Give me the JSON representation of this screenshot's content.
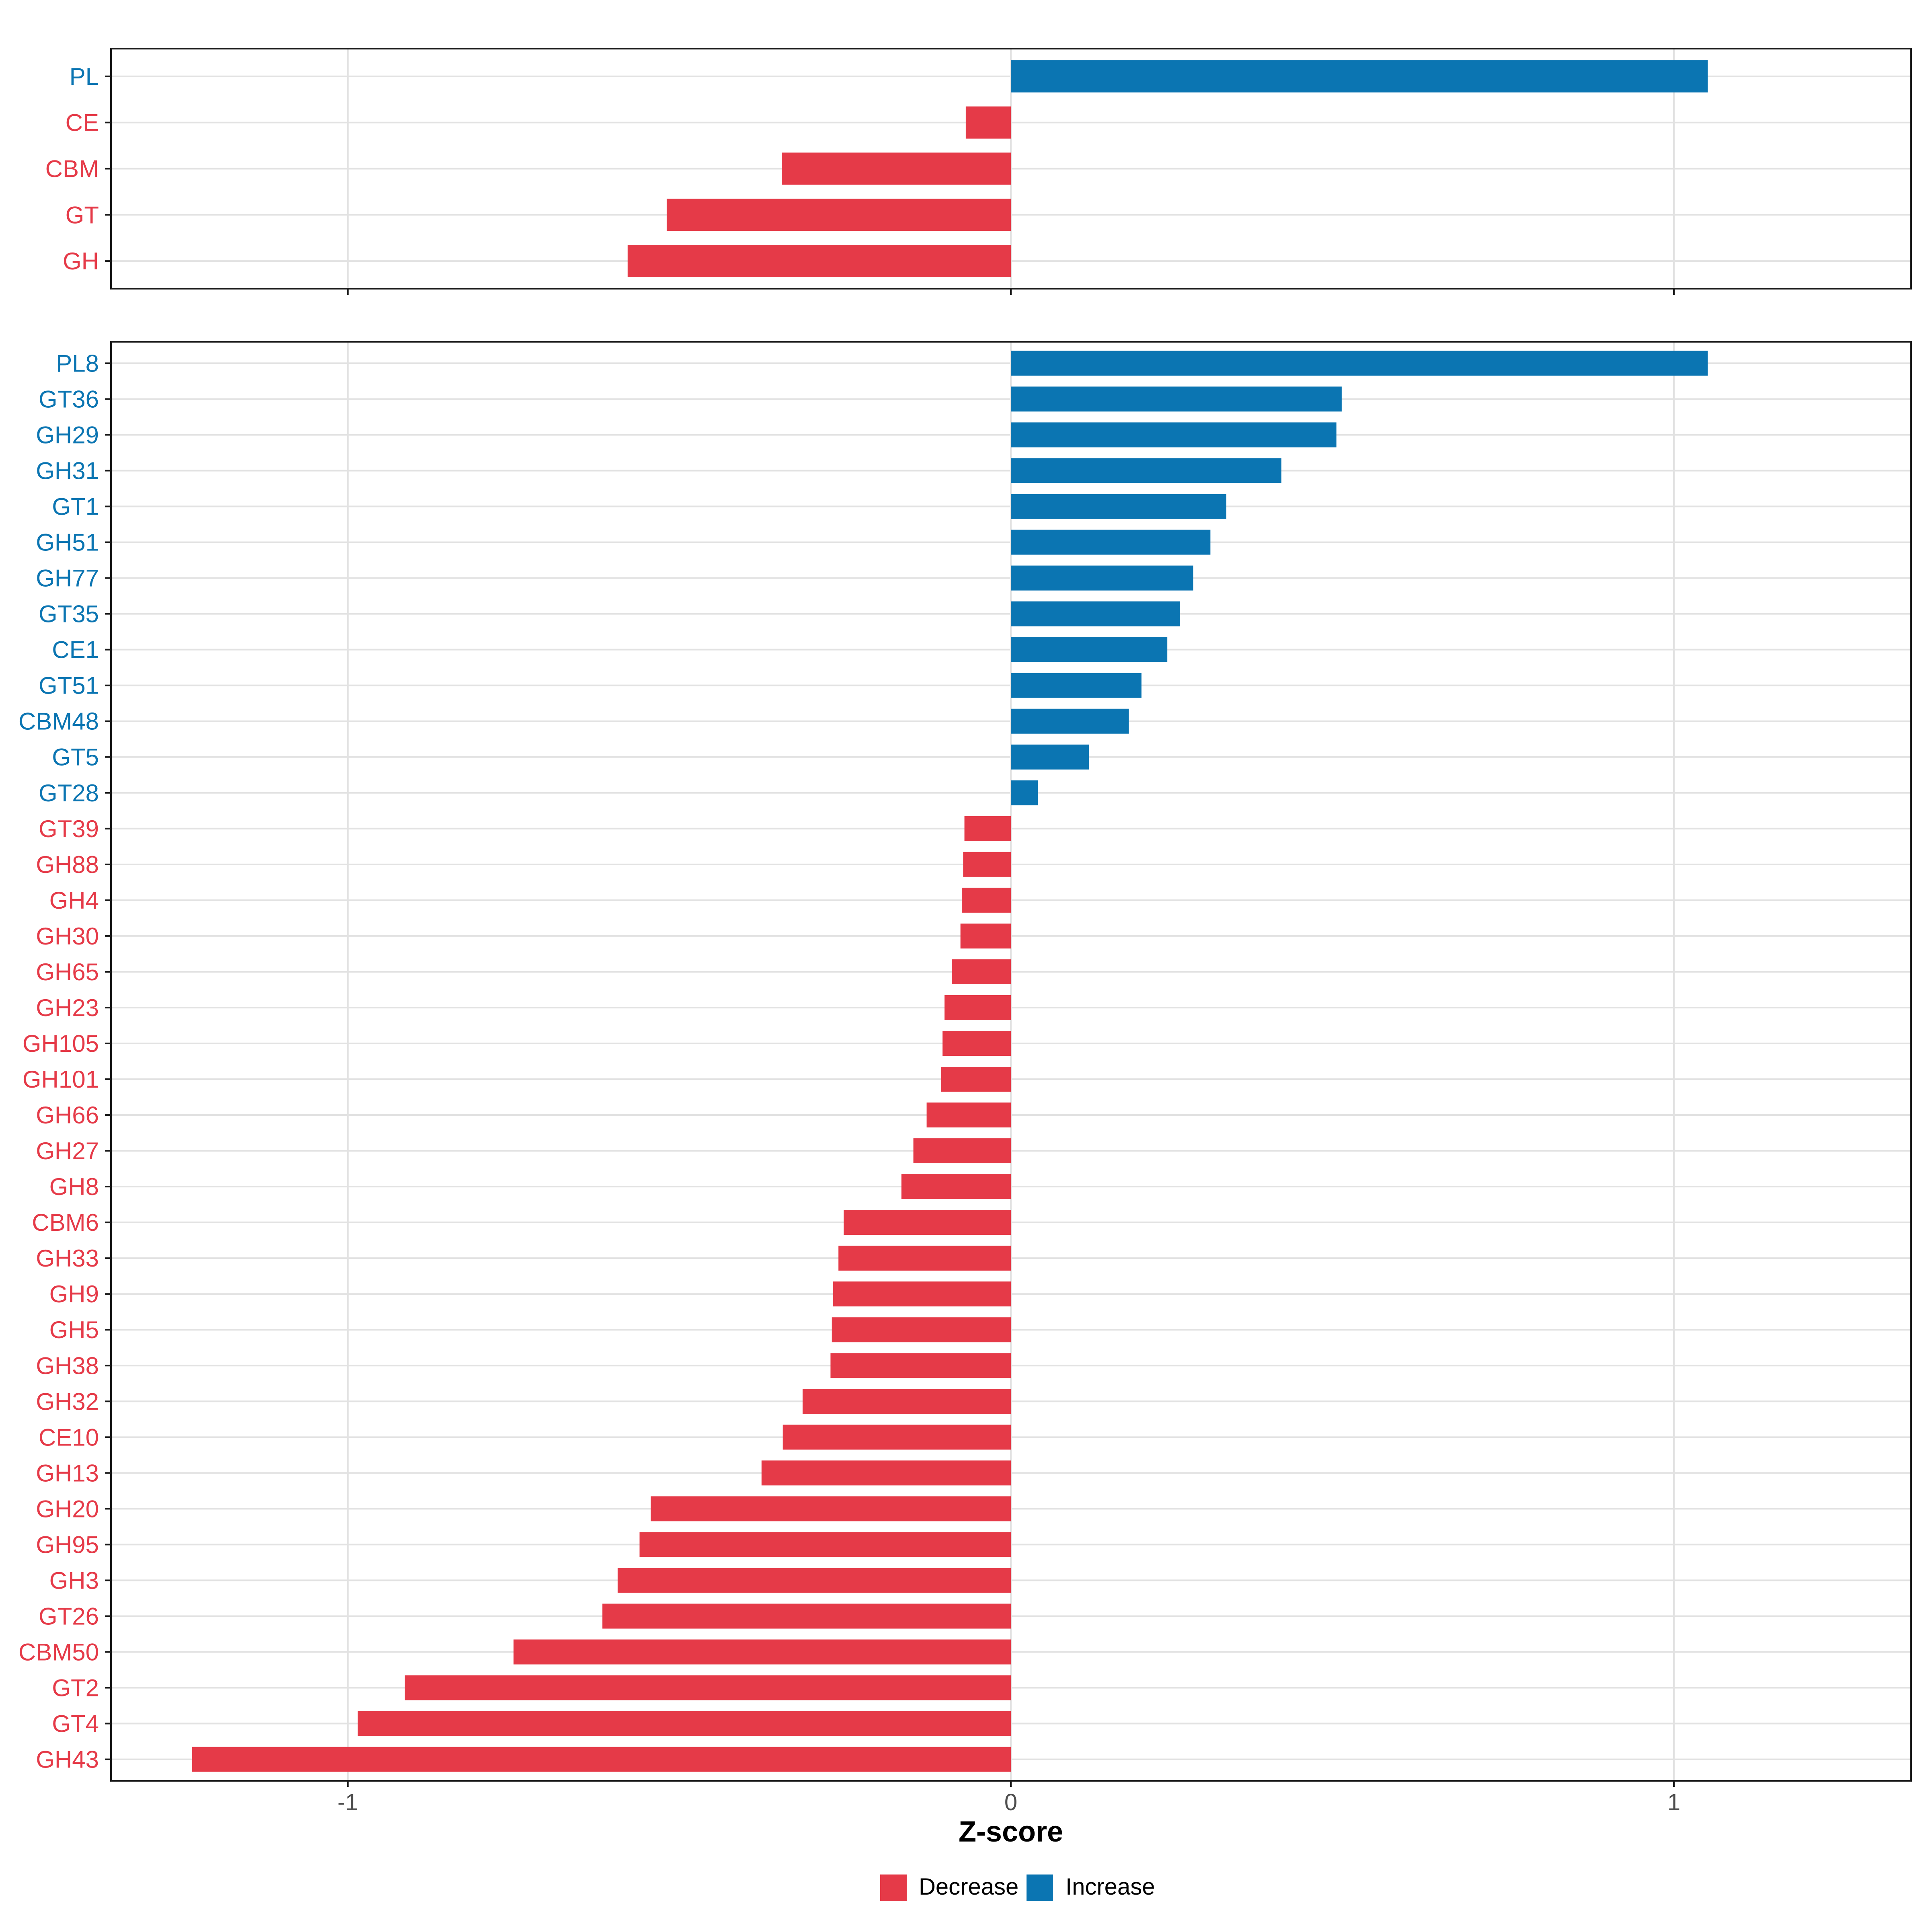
{
  "colors": {
    "decrease": "#E53A48",
    "increase": "#0B75B2",
    "gridline": "#E2E2E2",
    "axis_text": "#4D4D4D",
    "panel_border": "#1A1A1A",
    "background": "#FFFFFF"
  },
  "axis": {
    "title": "Z-score",
    "ticks": [
      -1,
      0,
      1
    ],
    "tick_labels": [
      "-1",
      "0",
      "1"
    ],
    "xlim": [
      -1.36,
      1.36
    ]
  },
  "legend": {
    "items": [
      {
        "label": "Decrease",
        "key": "decrease"
      },
      {
        "label": "Increase",
        "key": "increase"
      }
    ]
  },
  "chart_data": [
    {
      "type": "bar",
      "orientation": "horizontal",
      "panel": "enzyme-families",
      "xlabel": "Z-score",
      "xlim": [
        -1.36,
        1.36
      ],
      "grid": true,
      "legend_position": "bottom",
      "bars": [
        {
          "label": "PL",
          "value": 1.051,
          "direction": "Increase"
        },
        {
          "label": "CE",
          "value": -0.068,
          "direction": "Decrease"
        },
        {
          "label": "CBM",
          "value": -0.345,
          "direction": "Decrease"
        },
        {
          "label": "GT",
          "value": -0.519,
          "direction": "Decrease"
        },
        {
          "label": "GH",
          "value": -0.578,
          "direction": "Decrease"
        }
      ]
    },
    {
      "type": "bar",
      "orientation": "horizontal",
      "panel": "enzyme-subfamilies",
      "xlabel": "Z-score",
      "xlim": [
        -1.36,
        1.36
      ],
      "grid": true,
      "bars": [
        {
          "label": "PL8",
          "value": 1.051,
          "direction": "Increase"
        },
        {
          "label": "GT36",
          "value": 0.499,
          "direction": "Increase"
        },
        {
          "label": "GH29",
          "value": 0.491,
          "direction": "Increase"
        },
        {
          "label": "GH31",
          "value": 0.408,
          "direction": "Increase"
        },
        {
          "label": "GT1",
          "value": 0.325,
          "direction": "Increase"
        },
        {
          "label": "GH51",
          "value": 0.301,
          "direction": "Increase"
        },
        {
          "label": "GH77",
          "value": 0.275,
          "direction": "Increase"
        },
        {
          "label": "GT35",
          "value": 0.255,
          "direction": "Increase"
        },
        {
          "label": "CE1",
          "value": 0.236,
          "direction": "Increase"
        },
        {
          "label": "GT51",
          "value": 0.197,
          "direction": "Increase"
        },
        {
          "label": "CBM48",
          "value": 0.178,
          "direction": "Increase"
        },
        {
          "label": "GT5",
          "value": 0.118,
          "direction": "Increase"
        },
        {
          "label": "GT28",
          "value": 0.041,
          "direction": "Increase"
        },
        {
          "label": "GT39",
          "value": -0.07,
          "direction": "Decrease"
        },
        {
          "label": "GH88",
          "value": -0.072,
          "direction": "Decrease"
        },
        {
          "label": "GH4",
          "value": -0.074,
          "direction": "Decrease"
        },
        {
          "label": "GH30",
          "value": -0.076,
          "direction": "Decrease"
        },
        {
          "label": "GH65",
          "value": -0.089,
          "direction": "Decrease"
        },
        {
          "label": "GH23",
          "value": -0.1,
          "direction": "Decrease"
        },
        {
          "label": "GH105",
          "value": -0.103,
          "direction": "Decrease"
        },
        {
          "label": "GH101",
          "value": -0.105,
          "direction": "Decrease"
        },
        {
          "label": "GH66",
          "value": -0.127,
          "direction": "Decrease"
        },
        {
          "label": "GH27",
          "value": -0.147,
          "direction": "Decrease"
        },
        {
          "label": "GH8",
          "value": -0.165,
          "direction": "Decrease"
        },
        {
          "label": "CBM6",
          "value": -0.252,
          "direction": "Decrease"
        },
        {
          "label": "GH33",
          "value": -0.26,
          "direction": "Decrease"
        },
        {
          "label": "GH9",
          "value": -0.268,
          "direction": "Decrease"
        },
        {
          "label": "GH5",
          "value": -0.27,
          "direction": "Decrease"
        },
        {
          "label": "GH38",
          "value": -0.272,
          "direction": "Decrease"
        },
        {
          "label": "GH32",
          "value": -0.314,
          "direction": "Decrease"
        },
        {
          "label": "CE10",
          "value": -0.344,
          "direction": "Decrease"
        },
        {
          "label": "GH13",
          "value": -0.376,
          "direction": "Decrease"
        },
        {
          "label": "GH20",
          "value": -0.543,
          "direction": "Decrease"
        },
        {
          "label": "GH95",
          "value": -0.56,
          "direction": "Decrease"
        },
        {
          "label": "GH3",
          "value": -0.593,
          "direction": "Decrease"
        },
        {
          "label": "GT26",
          "value": -0.616,
          "direction": "Decrease"
        },
        {
          "label": "CBM50",
          "value": -0.75,
          "direction": "Decrease"
        },
        {
          "label": "GT2",
          "value": -0.914,
          "direction": "Decrease"
        },
        {
          "label": "GT4",
          "value": -0.985,
          "direction": "Decrease"
        },
        {
          "label": "GH43",
          "value": -1.235,
          "direction": "Decrease"
        }
      ]
    }
  ]
}
